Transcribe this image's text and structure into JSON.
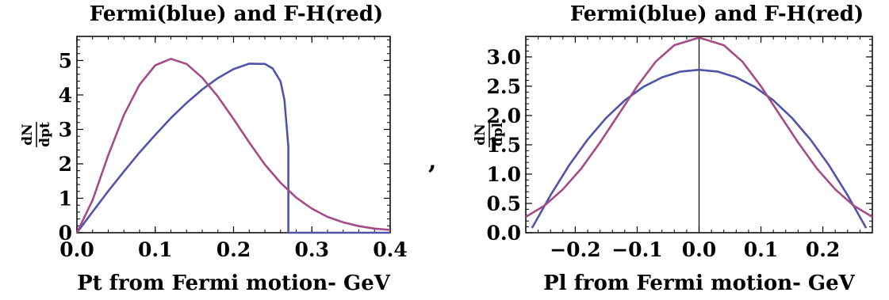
{
  "separator": ",",
  "chart_data": [
    {
      "type": "line",
      "title": "Fermi(blue) and F-H(red)",
      "xlabel": "Pt from Fermi motion- GeV",
      "ylabel": "dN/dpt",
      "ylabel_num": "dN",
      "ylabel_den": "dpt",
      "xlim": [
        0.0,
        0.4
      ],
      "ylim": [
        0,
        5.7
      ],
      "xticks": [
        0.0,
        0.1,
        0.2,
        0.3,
        0.4
      ],
      "xtick_labels": [
        "0.0",
        "0.1",
        "0.2",
        "0.3",
        "0.4"
      ],
      "yticks": [
        0,
        1,
        2,
        3,
        4,
        5
      ],
      "ytick_labels": [
        "0",
        "1",
        "2",
        "3",
        "4",
        "5"
      ],
      "grid": false,
      "series": [
        {
          "name": "Fermi",
          "color": "#5054a8",
          "x": [
            0.0,
            0.02,
            0.04,
            0.06,
            0.08,
            0.1,
            0.12,
            0.14,
            0.16,
            0.18,
            0.2,
            0.22,
            0.24,
            0.25,
            0.26,
            0.265,
            0.27,
            0.27,
            0.3,
            0.35,
            0.4
          ],
          "y": [
            0.0,
            0.61,
            1.21,
            1.78,
            2.33,
            2.84,
            3.33,
            3.77,
            4.16,
            4.49,
            4.75,
            4.91,
            4.9,
            4.77,
            4.39,
            3.85,
            2.5,
            0.0,
            0.0,
            0.0,
            0.0
          ]
        },
        {
          "name": "F-H",
          "color": "#a34c86",
          "x": [
            0.0,
            0.02,
            0.04,
            0.06,
            0.08,
            0.1,
            0.12,
            0.14,
            0.16,
            0.18,
            0.2,
            0.22,
            0.24,
            0.26,
            0.28,
            0.3,
            0.32,
            0.34,
            0.36,
            0.38,
            0.4
          ],
          "y": [
            0.0,
            0.95,
            2.25,
            3.42,
            4.3,
            4.86,
            5.05,
            4.9,
            4.5,
            3.95,
            3.3,
            2.62,
            1.98,
            1.45,
            1.02,
            0.7,
            0.46,
            0.3,
            0.19,
            0.12,
            0.08
          ]
        }
      ]
    },
    {
      "type": "line",
      "title": "Fermi(blue) and F-H(red)",
      "xlabel": "Pl from Fermi motion- GeV",
      "ylabel": "dN/dpl",
      "ylabel_num": "dN",
      "ylabel_den": "dpl",
      "xlim": [
        -0.28,
        0.28
      ],
      "ylim": [
        0.0,
        3.35
      ],
      "xticks": [
        -0.2,
        -0.1,
        0.0,
        0.1,
        0.2
      ],
      "xtick_labels": [
        "−0.2",
        "−0.1",
        "0.0",
        "0.1",
        "0.2"
      ],
      "yticks": [
        0.0,
        0.5,
        1.0,
        1.5,
        2.0,
        2.5,
        3.0
      ],
      "ytick_labels": [
        "0.0",
        "0.5",
        "1.0",
        "1.5",
        "2.0",
        "2.5",
        "3.0"
      ],
      "grid": false,
      "series": [
        {
          "name": "Fermi",
          "color": "#5054a8",
          "x": [
            -0.27,
            -0.24,
            -0.21,
            -0.18,
            -0.15,
            -0.12,
            -0.09,
            -0.06,
            -0.03,
            0.0,
            0.03,
            0.06,
            0.09,
            0.12,
            0.15,
            0.18,
            0.21,
            0.24,
            0.27
          ],
          "y": [
            0.08,
            0.64,
            1.15,
            1.59,
            1.96,
            2.26,
            2.49,
            2.65,
            2.75,
            2.78,
            2.75,
            2.65,
            2.49,
            2.26,
            1.96,
            1.59,
            1.15,
            0.64,
            0.08
          ]
        },
        {
          "name": "F-H",
          "color": "#a34c86",
          "x": [
            -0.28,
            -0.25,
            -0.22,
            -0.19,
            -0.16,
            -0.13,
            -0.1,
            -0.07,
            -0.04,
            0.0,
            0.04,
            0.07,
            0.1,
            0.13,
            0.16,
            0.19,
            0.22,
            0.25,
            0.28
          ],
          "y": [
            0.27,
            0.46,
            0.74,
            1.1,
            1.54,
            2.02,
            2.5,
            2.92,
            3.2,
            3.33,
            3.2,
            2.92,
            2.5,
            2.02,
            1.54,
            1.1,
            0.74,
            0.46,
            0.27
          ]
        }
      ]
    }
  ]
}
